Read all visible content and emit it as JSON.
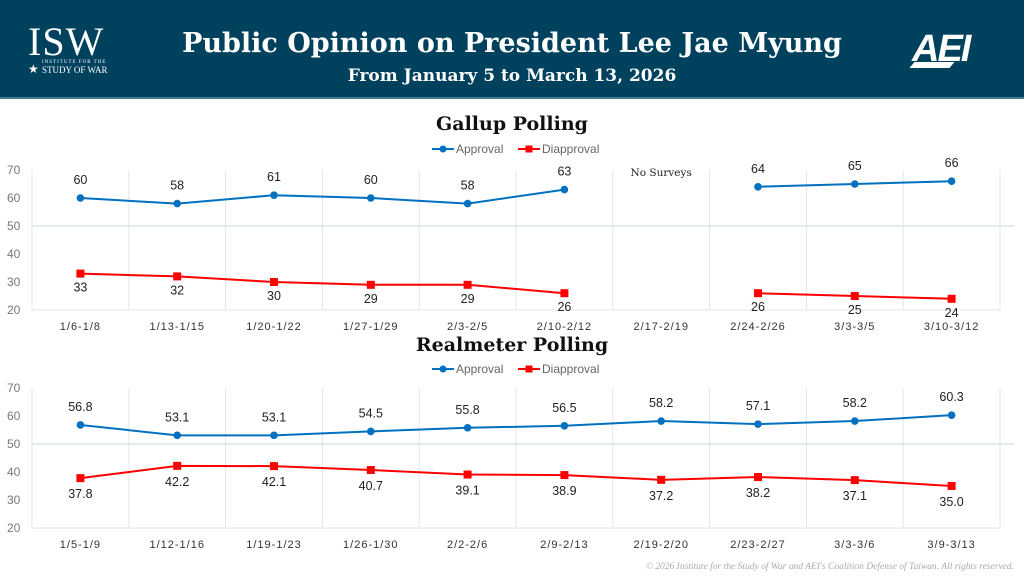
{
  "header": {
    "title": "Public Opinion on President Lee Jae Myung",
    "subtitle": "From January 5 to March 13, 2026",
    "isw_logo": {
      "main": "ISW",
      "line1": "INSTITUTE FOR THE",
      "line2": "STUDY OF WAR"
    },
    "aei_logo": "AEI"
  },
  "colors": {
    "header_bg": "#00415e",
    "approval": "#0070c0",
    "disapproval": "#ff0000",
    "grid": "#dce6ea"
  },
  "footer": "© 2026 Institute for the Study of War and AEI's Coalition Defense of Taiwan. All rights reserved.",
  "chart_data": [
    {
      "type": "line",
      "title": "Gallup Polling",
      "categories": [
        "1/6-1/8",
        "1/13-1/15",
        "1/20-1/22",
        "1/27-1/29",
        "2/3-2/5",
        "2/10-2/12",
        "2/17-2/19",
        "2/24-2/26",
        "3/3-3/5",
        "3/10-3/12"
      ],
      "series": [
        {
          "name": "Approval",
          "values": [
            60,
            58,
            61,
            60,
            58,
            63,
            null,
            64,
            65,
            66
          ]
        },
        {
          "name": "Diapproval",
          "values": [
            33,
            32,
            30,
            29,
            29,
            26,
            null,
            26,
            25,
            24
          ]
        }
      ],
      "annotations": [
        {
          "category": "2/17-2/19",
          "text": "No Surveys"
        }
      ],
      "yticks": [
        20,
        30,
        40,
        50,
        60,
        70
      ],
      "ylim": [
        20,
        70
      ],
      "legend": "top-center",
      "grid": true
    },
    {
      "type": "line",
      "title": "Realmeter Polling",
      "categories": [
        "1/5-1/9",
        "1/12-1/16",
        "1/19-1/23",
        "1/26-1/30",
        "2/2-2/6",
        "2/9-2/13",
        "2/19-2/20",
        "2/23-2/27",
        "3/3-3/6",
        "3/9-3/13"
      ],
      "series": [
        {
          "name": "Approval",
          "values": [
            56.8,
            53.1,
            53.1,
            54.5,
            55.8,
            56.5,
            58.2,
            57.1,
            58.2,
            60.3
          ]
        },
        {
          "name": "Diapproval",
          "values": [
            37.8,
            42.2,
            42.1,
            40.7,
            39.1,
            38.9,
            37.2,
            38.2,
            37.1,
            35.0
          ]
        }
      ],
      "yticks": [
        20,
        30,
        40,
        50,
        60,
        70
      ],
      "ylim": [
        20,
        70
      ],
      "legend": "top-center",
      "grid": true,
      "decimals": 1
    }
  ]
}
